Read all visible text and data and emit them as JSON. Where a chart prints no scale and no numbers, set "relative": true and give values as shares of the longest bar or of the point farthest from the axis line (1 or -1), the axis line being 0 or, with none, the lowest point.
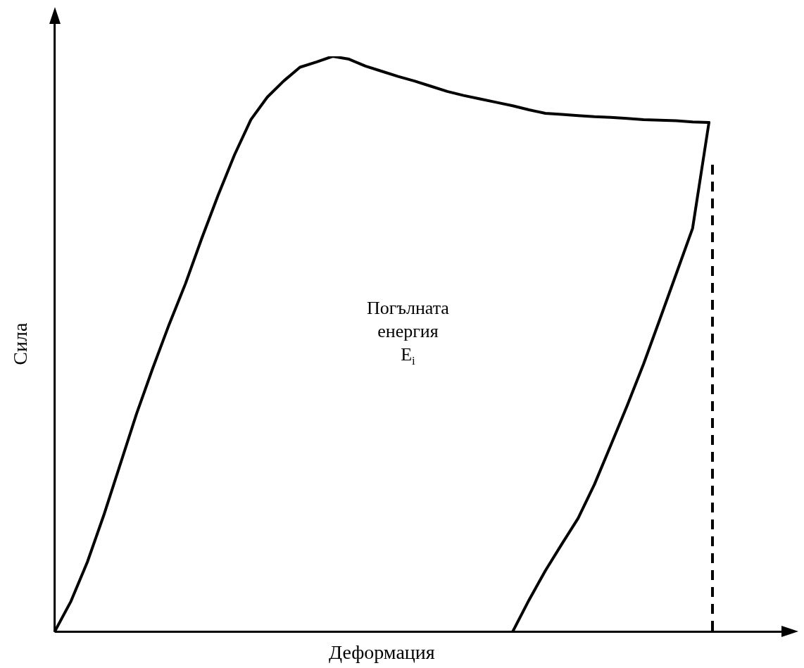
{
  "chart_data": {
    "type": "line",
    "relative": true,
    "xlabel": "Деформация",
    "ylabel": "Сила",
    "legend": false,
    "grid": false,
    "marker": "none",
    "line_style": "solid",
    "annotations": [
      "Погълната\nенергия\nE$_{i}$"
    ],
    "ref_lines": [
      {
        "axis": "x",
        "color": "#000000",
        "line_style": "dashed"
      }
    ],
    "categories": [
      null,
      null,
      null,
      null,
      null,
      null,
      null,
      null,
      null,
      null,
      null,
      null,
      null,
      null,
      null,
      null,
      null,
      null,
      null,
      null,
      null,
      null,
      null,
      null,
      null,
      null,
      null,
      null,
      null,
      null,
      null,
      null,
      null,
      null,
      null,
      null,
      null,
      null,
      null,
      null,
      null
    ],
    "series": [
      {
        "color": "#000000",
        "values": [
          0,
          0.053,
          0.121,
          0.202,
          0.29,
          0.378,
          0.458,
          0.534,
          0.605,
          0.684,
          0.759,
          0.829,
          0.89,
          0.929,
          0.957,
          0.981,
          0.99,
          1,
          0.995,
          0.983,
          0.974,
          0.965,
          0.957,
          0.948,
          0.939,
          0.932,
          0.926,
          0.92,
          0.914,
          0.907,
          0.901,
          0.899,
          0.897,
          0.895,
          0.894,
          0.892,
          0.89,
          0.889,
          0.888,
          0.886,
          0.885
        ]
      },
      {
        "color": "#000000",
        "values": [
          null,
          null,
          null,
          null,
          null,
          null,
          null,
          null,
          null,
          null,
          null,
          null,
          null,
          null,
          null,
          null,
          null,
          null,
          null,
          null,
          null,
          null,
          null,
          null,
          null,
          null,
          null,
          null,
          0,
          0.055,
          0.106,
          0.152,
          0.197,
          0.256,
          0.324,
          0.393,
          0.465,
          0.543,
          0.622,
          0.701,
          0.885
        ]
      }
    ]
  }
}
